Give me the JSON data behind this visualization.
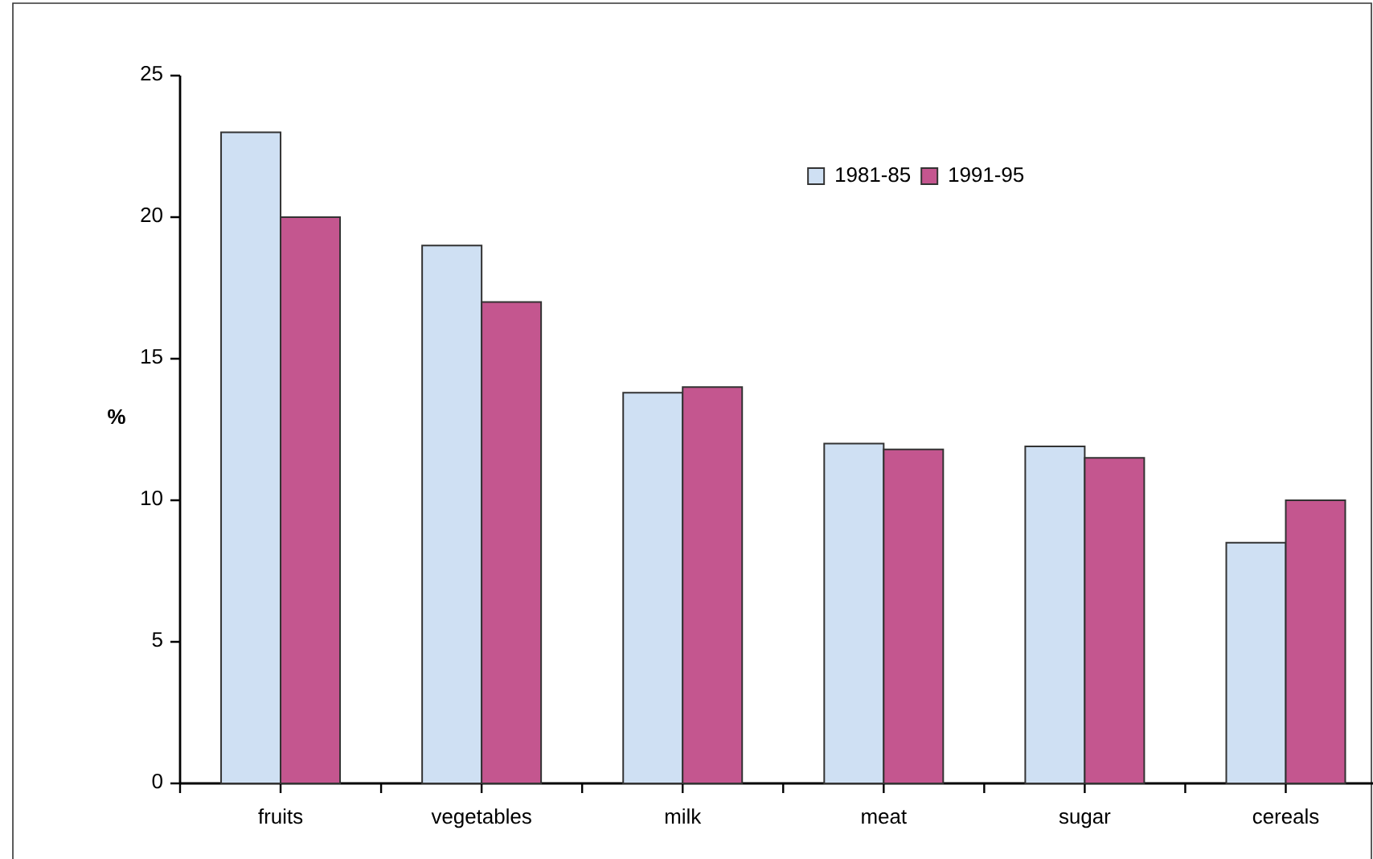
{
  "chart_data": {
    "type": "bar",
    "ylabel": "%",
    "categories": [
      "fruits",
      "vegetables",
      "milk",
      "meat",
      "sugar",
      "cereals"
    ],
    "series": [
      {
        "name": "1981-85",
        "color": "#cfe0f3",
        "values": [
          23,
          19,
          13.8,
          12,
          11.9,
          8.5
        ]
      },
      {
        "name": "1991-95",
        "color": "#c4568f",
        "values": [
          20,
          17,
          14,
          11.8,
          11.5,
          10
        ]
      }
    ],
    "ylim": [
      0,
      25
    ],
    "yticks": [
      0,
      5,
      10,
      15,
      20,
      25
    ],
    "legend": "top right",
    "grid": false
  }
}
